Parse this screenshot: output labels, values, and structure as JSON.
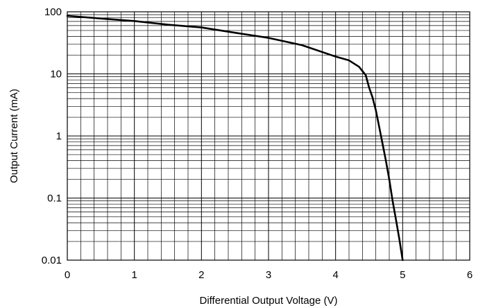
{
  "chart_data": {
    "type": "line",
    "title": "",
    "xlabel": "Differential Output Voltage (V)",
    "ylabel": "Output Current (mA)",
    "xlim": [
      0,
      6
    ],
    "ylim": [
      0.01,
      100
    ],
    "yscale": "log",
    "x_ticks": [
      "0",
      "1",
      "2",
      "3",
      "4",
      "5",
      "6"
    ],
    "y_ticks": [
      "0.01",
      "0.1",
      "1",
      "10",
      "100"
    ],
    "grid": true,
    "legend": "none",
    "line_color": "#000000",
    "series": [
      {
        "x": [
          0,
          0.5,
          1.0,
          1.5,
          2.0,
          2.5,
          3.0,
          3.5,
          4.0,
          4.2,
          4.35,
          4.45,
          4.5,
          4.55,
          4.6,
          4.65,
          4.7,
          4.75,
          4.8,
          4.85,
          4.9,
          4.95,
          5.0
        ],
        "y": [
          86,
          78,
          71,
          62,
          56,
          46,
          38,
          29,
          19,
          16.5,
          13,
          9.5,
          6,
          4.2,
          2.6,
          1.4,
          0.75,
          0.4,
          0.2,
          0.09,
          0.045,
          0.022,
          0.01
        ]
      }
    ]
  }
}
